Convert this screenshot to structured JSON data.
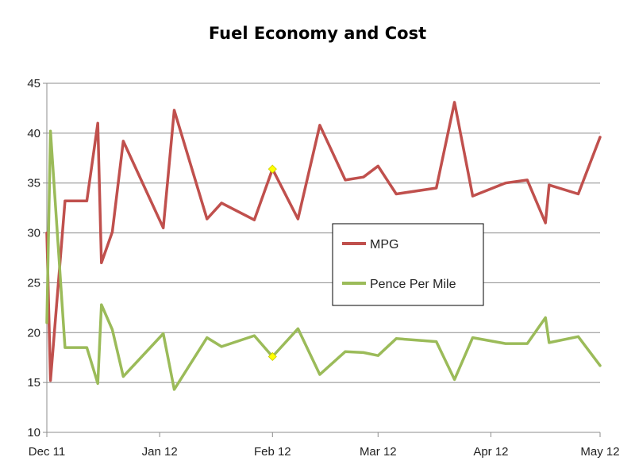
{
  "chart_data": {
    "type": "line",
    "title": "Fuel Economy and Cost",
    "xlabel": "",
    "ylabel": "",
    "ylim": [
      10,
      45
    ],
    "yticks": [
      10,
      15,
      20,
      25,
      30,
      35,
      40,
      45
    ],
    "x_unit": "days since 1 Dec 2011",
    "xlim": [
      0,
      152
    ],
    "xticks": [
      {
        "label": "Dec 11",
        "x": 0
      },
      {
        "label": "Jan 12",
        "x": 31
      },
      {
        "label": "Feb 12",
        "x": 62
      },
      {
        "label": "Mar 12",
        "x": 91
      },
      {
        "label": "Apr 12",
        "x": 122
      },
      {
        "label": "May 12",
        "x": 152
      }
    ],
    "grid": "horizontal",
    "legend_position": "center-right",
    "series": [
      {
        "name": "MPG",
        "color": "#c0504d",
        "x": [
          0,
          1,
          5,
          11,
          14,
          15,
          18,
          21,
          32,
          35,
          44,
          48,
          57,
          62,
          69,
          75,
          82,
          87,
          91,
          96,
          107,
          112,
          117,
          126,
          132,
          137,
          138,
          146,
          152
        ],
        "values": [
          30,
          15.2,
          33.2,
          33.2,
          41,
          27,
          30.1,
          39.2,
          30.5,
          42.3,
          31.4,
          33,
          31.3,
          36.4,
          31.4,
          40.8,
          35.3,
          35.6,
          36.7,
          33.9,
          34.5,
          43.1,
          33.7,
          35,
          35.3,
          31,
          34.8,
          33.9,
          39.6
        ]
      },
      {
        "name": "Pence Per Mile",
        "color": "#9bbb59",
        "x": [
          0,
          1,
          5,
          11,
          14,
          15,
          18,
          21,
          32,
          35,
          44,
          48,
          57,
          62,
          69,
          75,
          82,
          87,
          91,
          96,
          107,
          112,
          117,
          126,
          132,
          137,
          138,
          146,
          152
        ],
        "values": [
          21,
          40.2,
          18.5,
          18.5,
          14.9,
          22.8,
          20.3,
          15.6,
          19.9,
          14.3,
          19.5,
          18.6,
          19.7,
          17.6,
          20.4,
          15.8,
          18.1,
          18,
          17.7,
          19.4,
          19.1,
          15.3,
          19.5,
          18.9,
          18.9,
          21.5,
          19,
          19.6,
          16.7
        ]
      }
    ],
    "highlight_points": [
      {
        "series": "MPG",
        "x": 62,
        "value": 36.4,
        "color": "#ffff00"
      },
      {
        "series": "Pence Per Mile",
        "x": 62,
        "value": 17.6,
        "color": "#ffff00"
      }
    ]
  }
}
